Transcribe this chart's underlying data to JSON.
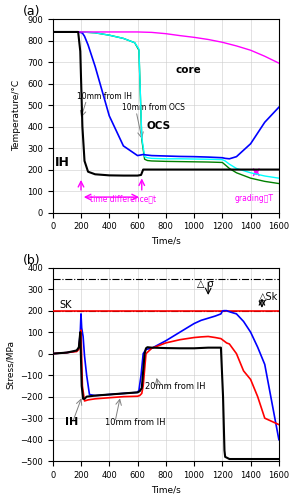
{
  "fig_width": 2.95,
  "fig_height": 5.0,
  "dpi": 100,
  "panel_a": {
    "xlabel": "Time/s",
    "ylabel": "Temperature/°C",
    "xlim": [
      0,
      1600
    ],
    "ylim": [
      0,
      900
    ],
    "xticks": [
      0,
      200,
      400,
      600,
      800,
      1000,
      1200,
      1400,
      1600
    ],
    "yticks": [
      0,
      100,
      200,
      300,
      400,
      500,
      600,
      700,
      800,
      900
    ],
    "label": "(a)"
  },
  "panel_b": {
    "xlabel": "Time/s",
    "ylabel": "Stress/MPa",
    "xlim": [
      0,
      1600
    ],
    "ylim": [
      -500,
      400
    ],
    "xticks": [
      0,
      200,
      400,
      600,
      800,
      1000,
      1200,
      1400,
      1600
    ],
    "yticks": [
      -500,
      -400,
      -300,
      -200,
      -100,
      0,
      100,
      200,
      300,
      400
    ],
    "label": "(b)"
  },
  "colors": {
    "IH": "black",
    "10mm_IH": "blue",
    "10mm_OCS": "cyan",
    "OCS": "green",
    "core": "magenta",
    "red_line": "red",
    "magenta": "magenta",
    "gray": "gray"
  }
}
